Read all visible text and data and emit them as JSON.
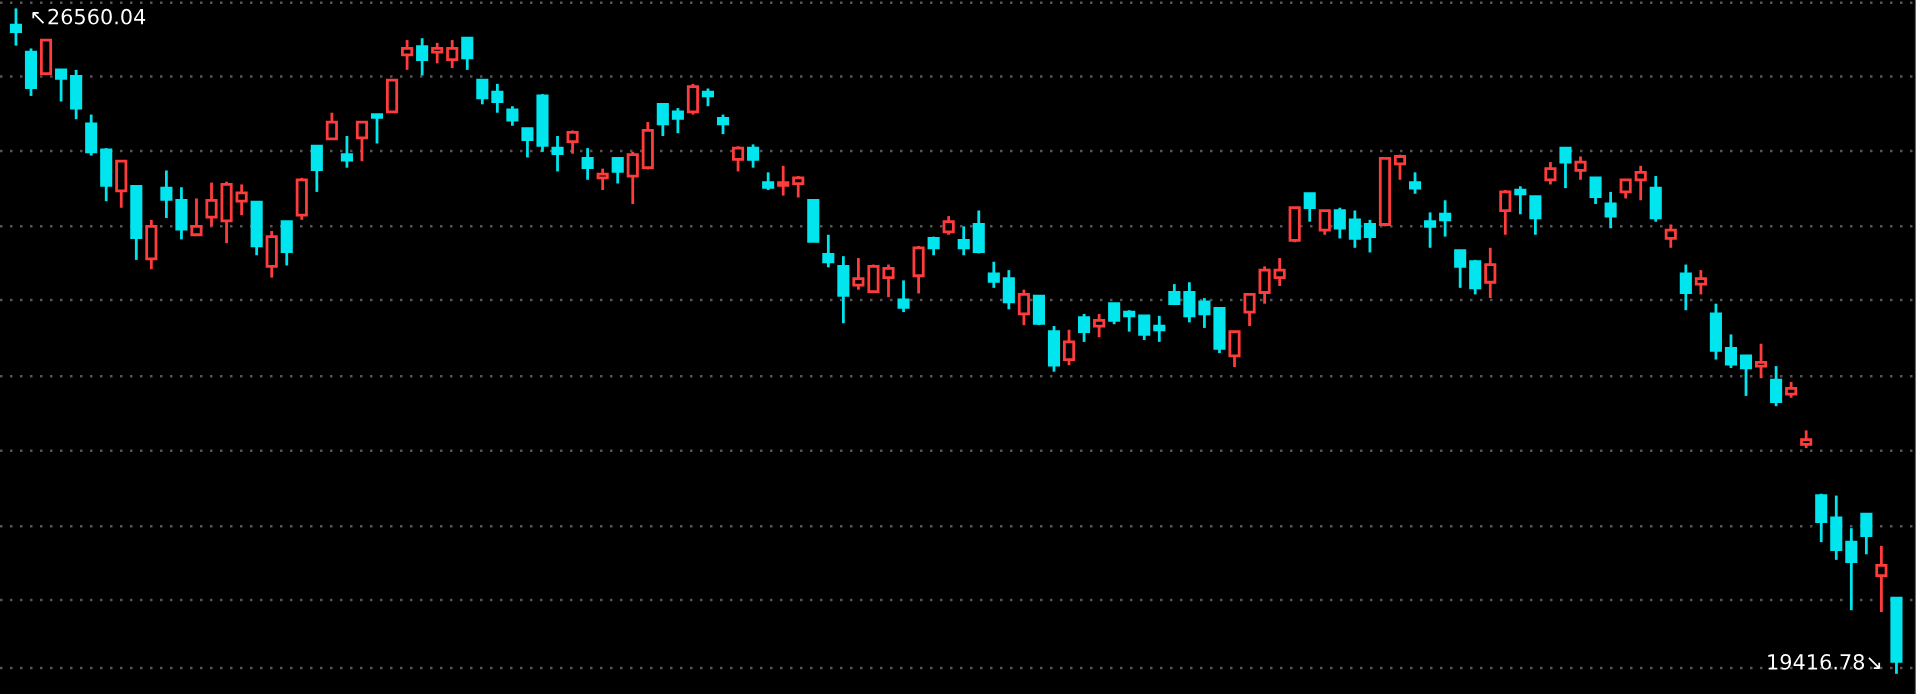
{
  "chart_data": {
    "type": "candlestick",
    "categories": [
      null,
      null,
      null,
      null,
      null,
      null,
      null,
      null,
      null,
      null,
      null,
      null,
      null,
      null,
      null,
      null,
      null,
      null,
      null,
      null,
      null,
      null,
      null,
      null,
      null,
      null,
      null,
      null,
      null,
      null,
      null,
      null,
      null,
      null,
      null,
      null,
      null,
      null,
      null,
      null,
      null,
      null,
      null,
      null,
      null,
      null,
      null,
      null,
      null,
      null,
      null,
      null,
      null,
      null,
      null,
      null,
      null,
      null,
      null,
      null,
      null,
      null,
      null,
      null,
      null,
      null,
      null,
      null,
      null,
      null,
      null,
      null,
      null,
      null,
      null,
      null,
      null,
      null,
      null,
      null,
      null,
      null,
      null,
      null,
      null,
      null,
      null,
      null,
      null,
      null,
      null,
      null,
      null,
      null,
      null,
      null,
      null,
      null,
      null,
      null,
      null,
      null,
      null,
      null,
      null,
      null,
      null,
      null,
      null,
      null,
      null,
      null,
      null,
      null,
      null,
      null,
      null,
      null,
      null,
      null,
      null,
      null,
      null,
      null,
      null,
      null
    ],
    "ohlc": [
      [
        26380,
        26560.04,
        26160,
        26310
      ],
      [
        26090,
        26130,
        25620,
        25710
      ],
      [
        25860,
        26220,
        25860,
        26220
      ],
      [
        25900,
        25900,
        25560,
        25810
      ],
      [
        25830,
        25900,
        25370,
        25490
      ],
      [
        25320,
        25420,
        24980,
        25020
      ],
      [
        25040,
        25060,
        24490,
        24660
      ],
      [
        24600,
        24920,
        24420,
        24920
      ],
      [
        24650,
        24650,
        23860,
        24100
      ],
      [
        23870,
        24290,
        23760,
        24220
      ],
      [
        24630,
        24820,
        24310,
        24510
      ],
      [
        24500,
        24640,
        24080,
        24190
      ],
      [
        24130,
        24520,
        24130,
        24220
      ],
      [
        24320,
        24690,
        24220,
        24500
      ],
      [
        24280,
        24700,
        24040,
        24670
      ],
      [
        24490,
        24670,
        24340,
        24580
      ],
      [
        24480,
        24480,
        23910,
        24010
      ],
      [
        23790,
        24170,
        23670,
        24110
      ],
      [
        24270,
        24270,
        23800,
        23950
      ],
      [
        24340,
        24740,
        24290,
        24720
      ],
      [
        25080,
        25080,
        24590,
        24830
      ],
      [
        25160,
        25440,
        25160,
        25340
      ],
      [
        24990,
        25190,
        24850,
        24930
      ],
      [
        25170,
        25340,
        24920,
        25340
      ],
      [
        25420,
        25420,
        25110,
        25390
      ],
      [
        25450,
        25800,
        25450,
        25790
      ],
      [
        26060,
        26220,
        25900,
        26130
      ],
      [
        26150,
        26240,
        25840,
        26010
      ],
      [
        26090,
        26190,
        25970,
        26130
      ],
      [
        26010,
        26220,
        25920,
        26130
      ],
      [
        26240,
        26240,
        25900,
        26030
      ],
      [
        25790,
        25790,
        25530,
        25600
      ],
      [
        25660,
        25750,
        25440,
        25560
      ],
      [
        25470,
        25510,
        25300,
        25360
      ],
      [
        25270,
        25270,
        24960,
        25150
      ],
      [
        25620,
        25640,
        25020,
        25090
      ],
      [
        25060,
        25190,
        24810,
        25000
      ],
      [
        25130,
        25250,
        25000,
        25230
      ],
      [
        24950,
        25060,
        24720,
        24850
      ],
      [
        24740,
        24840,
        24610,
        24780
      ],
      [
        24950,
        24950,
        24680,
        24810
      ],
      [
        24760,
        25020,
        24460,
        24990
      ],
      [
        24850,
        25340,
        24830,
        25250
      ],
      [
        25530,
        25530,
        25190,
        25320
      ],
      [
        25450,
        25490,
        25220,
        25380
      ],
      [
        25450,
        25750,
        25420,
        25720
      ],
      [
        25660,
        25700,
        25510,
        25620
      ],
      [
        25380,
        25420,
        25210,
        25320
      ],
      [
        24940,
        25080,
        24810,
        25060
      ],
      [
        25060,
        25100,
        24850,
        24940
      ],
      [
        24690,
        24800,
        24610,
        24640
      ],
      [
        24660,
        24870,
        24550,
        24690
      ],
      [
        24680,
        24760,
        24530,
        24740
      ],
      [
        24500,
        24500,
        24060,
        24060
      ],
      [
        23920,
        24130,
        23780,
        23840
      ],
      [
        23790,
        23900,
        23180,
        23480
      ],
      [
        23590,
        23880,
        23540,
        23660
      ],
      [
        23520,
        23810,
        23520,
        23790
      ],
      [
        23670,
        23810,
        23460,
        23770
      ],
      [
        23430,
        23640,
        23300,
        23350
      ],
      [
        23690,
        24010,
        23500,
        23990
      ],
      [
        24090,
        24110,
        23910,
        23990
      ],
      [
        24160,
        24330,
        24130,
        24270
      ],
      [
        24070,
        24220,
        23910,
        23990
      ],
      [
        24240,
        24390,
        23930,
        23950
      ],
      [
        23710,
        23840,
        23560,
        23630
      ],
      [
        23660,
        23750,
        23330,
        23410
      ],
      [
        23280,
        23540,
        23160,
        23490
      ],
      [
        23470,
        23470,
        23160,
        23180
      ],
      [
        23090,
        23150,
        22660,
        22730
      ],
      [
        22790,
        23110,
        22730,
        22980
      ],
      [
        23240,
        23280,
        22980,
        23090
      ],
      [
        23150,
        23280,
        23030,
        23210
      ],
      [
        23390,
        23390,
        23170,
        23210
      ],
      [
        23300,
        23320,
        23090,
        23260
      ],
      [
        23260,
        23260,
        23000,
        23060
      ],
      [
        23150,
        23260,
        22980,
        23110
      ],
      [
        23510,
        23600,
        23390,
        23390
      ],
      [
        23510,
        23620,
        23190,
        23260
      ],
      [
        23410,
        23450,
        23130,
        23280
      ],
      [
        23340,
        23340,
        22860,
        22910
      ],
      [
        22830,
        23090,
        22710,
        23090
      ],
      [
        23300,
        23490,
        23150,
        23490
      ],
      [
        23510,
        23790,
        23390,
        23750
      ],
      [
        23670,
        23880,
        23580,
        23750
      ],
      [
        24070,
        24420,
        24050,
        24420
      ],
      [
        24570,
        24570,
        24270,
        24420
      ],
      [
        24180,
        24390,
        24130,
        24390
      ],
      [
        24390,
        24420,
        24090,
        24200
      ],
      [
        24290,
        24390,
        23990,
        24090
      ],
      [
        24240,
        24290,
        23940,
        24110
      ],
      [
        24240,
        24950,
        24220,
        24950
      ],
      [
        24890,
        24990,
        24720,
        24970
      ],
      [
        24690,
        24800,
        24570,
        24630
      ],
      [
        24270,
        24370,
        23990,
        24220
      ],
      [
        24350,
        24500,
        24110,
        24290
      ],
      [
        23960,
        23960,
        23560,
        23790
      ],
      [
        23840,
        23860,
        23490,
        23560
      ],
      [
        23620,
        23990,
        23450,
        23810
      ],
      [
        24390,
        24610,
        24130,
        24590
      ],
      [
        24610,
        24650,
        24350,
        24570
      ],
      [
        24540,
        24540,
        24130,
        24310
      ],
      [
        24720,
        24910,
        24670,
        24840
      ],
      [
        25060,
        25060,
        24630,
        24910
      ],
      [
        24820,
        24970,
        24720,
        24910
      ],
      [
        24740,
        24740,
        24460,
        24540
      ],
      [
        24460,
        24590,
        24200,
        24330
      ],
      [
        24590,
        24720,
        24520,
        24720
      ],
      [
        24720,
        24870,
        24500,
        24800
      ],
      [
        24630,
        24760,
        24270,
        24310
      ],
      [
        24090,
        24240,
        23990,
        24180
      ],
      [
        23710,
        23810,
        23320,
        23510
      ],
      [
        23600,
        23750,
        23490,
        23660
      ],
      [
        23280,
        23390,
        22790,
        22890
      ],
      [
        22910,
        23060,
        22700,
        22740
      ],
      [
        22830,
        22830,
        22400,
        22700
      ],
      [
        22720,
        22960,
        22590,
        22760
      ],
      [
        22570,
        22720,
        22290,
        22340
      ],
      [
        22420,
        22550,
        22380,
        22480
      ],
      [
        21880,
        22030,
        21840,
        21930
      ],
      [
        21330,
        21350,
        20830,
        21050
      ],
      [
        21090,
        21330,
        20640,
        20750
      ],
      [
        20830,
        20980,
        20100,
        20620
      ],
      [
        21130,
        21130,
        20700,
        20900
      ],
      [
        20470,
        20790,
        20080,
        20580
      ],
      [
        20230,
        20230,
        19416.78,
        19550
      ]
    ],
    "colors": [
      "#00e5ee",
      "#00e5ee",
      "#ff3c3c",
      "#00e5ee",
      "#00e5ee",
      "#00e5ee",
      "#00e5ee",
      "#ff3c3c",
      "#00e5ee",
      "#ff3c3c",
      "#00e5ee",
      "#00e5ee",
      "#ff3c3c",
      "#ff3c3c",
      "#ff3c3c",
      "#ff3c3c",
      "#00e5ee",
      "#ff3c3c",
      "#00e5ee",
      "#ff3c3c",
      "#00e5ee",
      "#ff3c3c",
      "#00e5ee",
      "#ff3c3c",
      "#00e5ee",
      "#ff3c3c",
      "#ff3c3c",
      "#00e5ee",
      "#ff3c3c",
      "#ff3c3c",
      "#00e5ee",
      "#00e5ee",
      "#00e5ee",
      "#00e5ee",
      "#00e5ee",
      "#00e5ee",
      "#00e5ee",
      "#ff3c3c",
      "#00e5ee",
      "#ff3c3c",
      "#00e5ee",
      "#ff3c3c",
      "#ff3c3c",
      "#00e5ee",
      "#00e5ee",
      "#ff3c3c",
      "#00e5ee",
      "#00e5ee",
      "#ff3c3c",
      "#00e5ee",
      "#00e5ee",
      "#ff3c3c",
      "#ff3c3c",
      "#00e5ee",
      "#00e5ee",
      "#00e5ee",
      "#ff3c3c",
      "#ff3c3c",
      "#ff3c3c",
      "#00e5ee",
      "#ff3c3c",
      "#00e5ee",
      "#ff3c3c",
      "#00e5ee",
      "#00e5ee",
      "#00e5ee",
      "#00e5ee",
      "#ff3c3c",
      "#00e5ee",
      "#00e5ee",
      "#ff3c3c",
      "#00e5ee",
      "#ff3c3c",
      "#00e5ee",
      "#00e5ee",
      "#00e5ee",
      "#00e5ee",
      "#00e5ee",
      "#00e5ee",
      "#00e5ee",
      "#00e5ee",
      "#ff3c3c",
      "#ff3c3c",
      "#ff3c3c",
      "#ff3c3c",
      "#ff3c3c",
      "#00e5ee",
      "#ff3c3c",
      "#00e5ee",
      "#00e5ee",
      "#00e5ee",
      "#ff3c3c",
      "#ff3c3c",
      "#00e5ee",
      "#00e5ee",
      "#00e5ee",
      "#00e5ee",
      "#00e5ee",
      "#ff3c3c",
      "#ff3c3c",
      "#00e5ee",
      "#00e5ee",
      "#ff3c3c",
      "#00e5ee",
      "#ff3c3c",
      "#00e5ee",
      "#00e5ee",
      "#ff3c3c",
      "#ff3c3c",
      "#00e5ee",
      "#ff3c3c",
      "#00e5ee",
      "#ff3c3c",
      "#00e5ee",
      "#00e5ee",
      "#00e5ee",
      "#ff3c3c",
      "#00e5ee",
      "#ff3c3c",
      "#ff3c3c",
      "#00e5ee",
      "#00e5ee",
      "#00e5ee",
      "#00e5ee",
      "#ff3c3c",
      "#00e5ee"
    ],
    "ylim": [
      19200,
      26650
    ],
    "yticks": [
      {
        "value": 26620,
        "label": null
      },
      {
        "value": 25830,
        "label": null
      },
      {
        "value": 25030,
        "label": null
      },
      {
        "value": 24220,
        "label": null
      },
      {
        "value": 23430,
        "label": null
      },
      {
        "value": 22610,
        "label": null
      },
      {
        "value": 21810,
        "label": null
      },
      {
        "value": 21000,
        "label": null
      },
      {
        "value": 20210,
        "label": null
      },
      {
        "value": 19480,
        "label": null
      }
    ],
    "grid": "y",
    "annotations": [
      "↖26560.04",
      "19416.78↘"
    ]
  }
}
